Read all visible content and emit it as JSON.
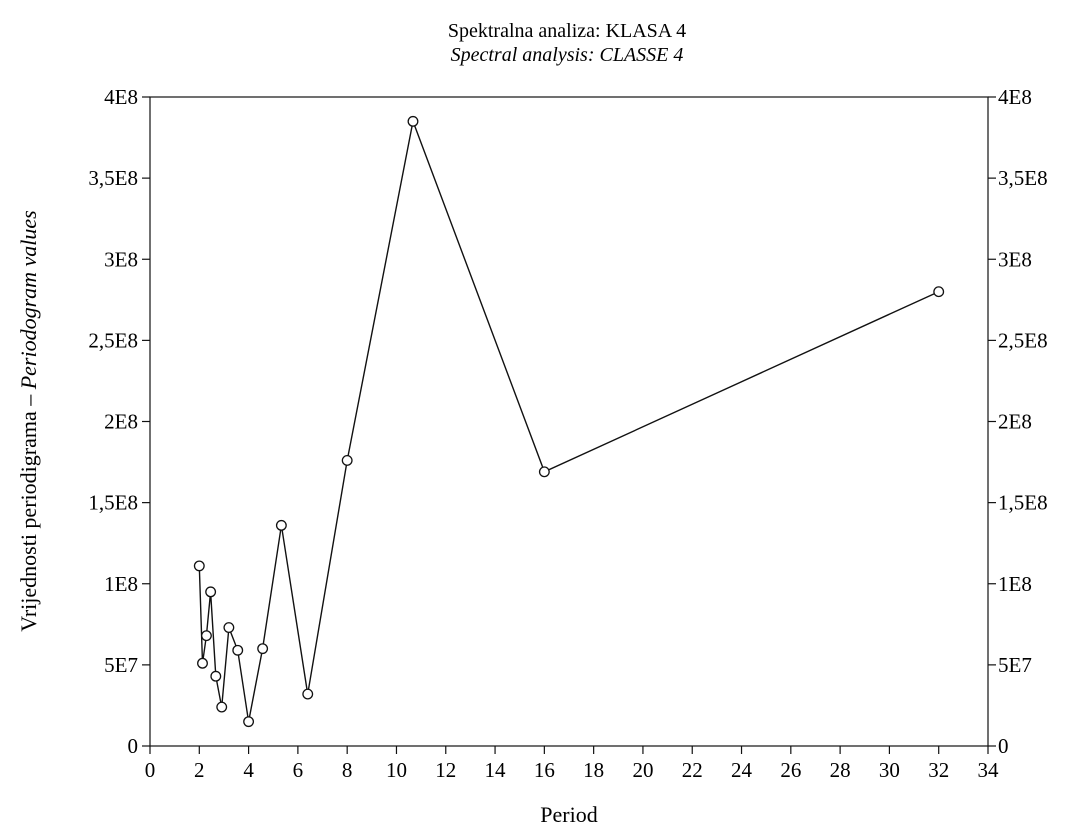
{
  "chart_data": {
    "type": "line",
    "title": "Spektralna analiza: KLASA 4",
    "subtitle": "Spectral analysis: CLASSE 4",
    "xlabel": "Period",
    "ylabel": "Vrijednosti periodigrama – ",
    "ylabel_italic": "Periodogram values",
    "xlim": [
      0,
      34
    ],
    "ylim": [
      0,
      400000000
    ],
    "x_ticks": [
      0,
      2,
      4,
      6,
      8,
      10,
      12,
      14,
      16,
      18,
      20,
      22,
      24,
      26,
      28,
      30,
      32,
      34
    ],
    "y_ticks": [
      {
        "value": 0,
        "label": "0"
      },
      {
        "value": 50000000,
        "label": "5E7"
      },
      {
        "value": 100000000,
        "label": "1E8"
      },
      {
        "value": 150000000,
        "label": "1,5E8"
      },
      {
        "value": 200000000,
        "label": "2E8"
      },
      {
        "value": 250000000,
        "label": "2,5E8"
      },
      {
        "value": 300000000,
        "label": "3E8"
      },
      {
        "value": 350000000,
        "label": "3,5E8"
      },
      {
        "value": 400000000,
        "label": "4E8"
      }
    ],
    "right_axis_labels": true,
    "grid": false,
    "marker": "open-circle",
    "series": [
      {
        "x": [
          2.0,
          2.13,
          2.29,
          2.46,
          2.67,
          2.91,
          3.2,
          3.56,
          4.0,
          4.57,
          5.33,
          6.4,
          8.0,
          10.67,
          16.0,
          32.0
        ],
        "y": [
          111000000,
          51000000,
          68000000,
          95000000,
          43000000,
          24000000,
          73000000,
          59000000,
          15000000,
          60000000,
          136000000,
          32000000,
          176000000,
          385000000,
          169000000,
          280000000
        ]
      }
    ]
  }
}
